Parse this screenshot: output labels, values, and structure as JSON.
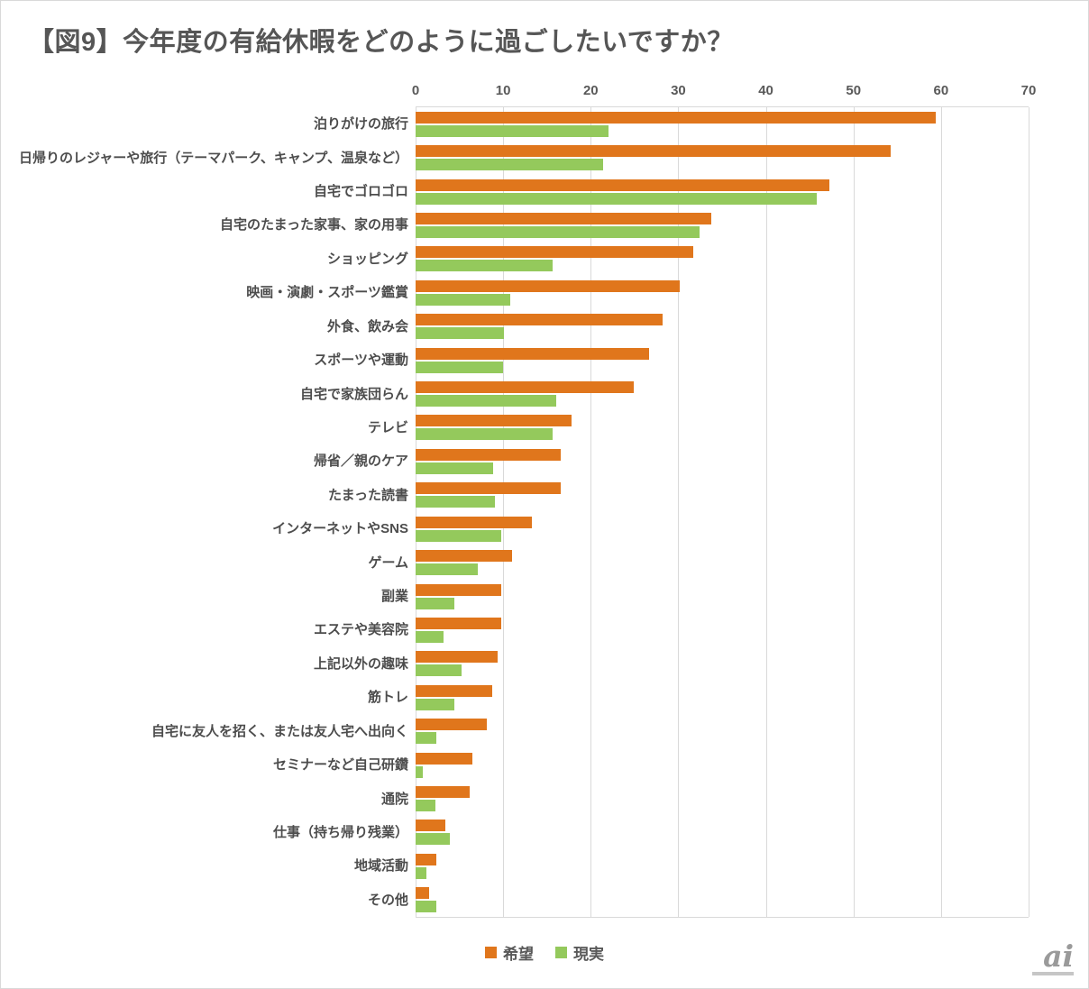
{
  "page": {
    "title": "【図9】今年度の有給休暇をどのように過ごしたいですか？",
    "watermark": "ai"
  },
  "legend": {
    "hope_label": "希望",
    "reality_label": "現実"
  },
  "chart_data": {
    "type": "bar",
    "orientation": "horizontal",
    "title": "【図9】今年度の有給休暇をどのように過ごしたいですか？",
    "categories": [
      "泊りがけの旅行",
      "日帰りのレジャーや旅行（テーマパーク、キャンプ、温泉など）",
      "自宅でゴロゴロ",
      "自宅のたまった家事、家の用事",
      "ショッピング",
      "映画・演劇・スポーツ鑑賞",
      "外食、飲み会",
      "スポーツや運動",
      "自宅で家族団らん",
      "テレビ",
      "帰省／親のケア",
      "たまった読書",
      "インターネットやSNS",
      "ゲーム",
      "副業",
      "エステや美容院",
      "上記以外の趣味",
      "筋トレ",
      "自宅に友人を招く、または友人宅へ出向く",
      "セミナーなど自己研鑽",
      "通院",
      "仕事（持ち帰り残業）",
      "地域活動",
      "その他"
    ],
    "series": [
      {
        "name": "希望",
        "color": "#E0761C",
        "values": [
          59.4,
          54.3,
          47.3,
          33.8,
          31.7,
          30.2,
          28.2,
          26.7,
          24.9,
          17.8,
          16.6,
          16.6,
          13.3,
          11.0,
          9.8,
          9.8,
          9.4,
          8.7,
          8.1,
          6.5,
          6.2,
          3.4,
          2.4,
          1.5
        ]
      },
      {
        "name": "現実",
        "color": "#94C95C",
        "values": [
          22.0,
          21.4,
          45.8,
          32.4,
          15.6,
          10.8,
          10.1,
          10.0,
          16.1,
          15.6,
          8.9,
          9.1,
          9.8,
          7.1,
          4.4,
          3.2,
          5.3,
          4.4,
          2.4,
          0.8,
          2.3,
          3.9,
          1.2,
          2.4
        ]
      }
    ],
    "xlim": [
      0,
      70
    ],
    "xticks": [
      0,
      10,
      20,
      30,
      40,
      50,
      60,
      70
    ],
    "grid": true,
    "legend_position": "bottom",
    "gridline_color": "#d9d9d9"
  }
}
